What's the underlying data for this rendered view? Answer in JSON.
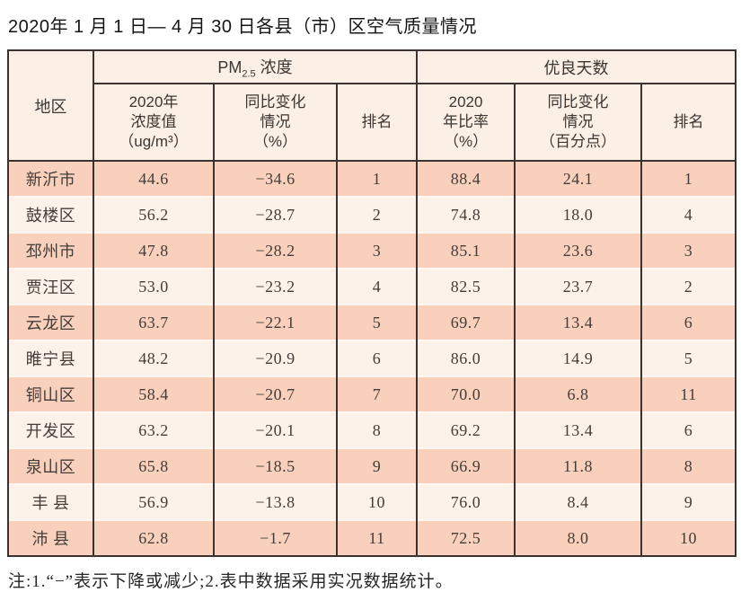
{
  "page": {
    "title": "2020年 1 月 1 日— 4 月 30 日各县（市）区空气质量情况",
    "note": "注:1.“−”表示下降或减少;2.表中数据采用实况数据统计。"
  },
  "colors": {
    "row_odd": "#f8d0bb",
    "row_even": "#fdf2ea",
    "header_bg": "#fcefe5",
    "border_dark": "#3b3330",
    "text_dark": "#433c38"
  },
  "table": {
    "corner_header": "地区",
    "groups": {
      "pm": {
        "prefix": "PM",
        "sub": "2.5",
        "suffix": " 浓度"
      },
      "days": {
        "label": "优良天数"
      }
    },
    "sub_headers": {
      "pm_value": "2020年\n浓度值\n（ug/m³）",
      "pm_change": "同比变化\n情况\n（%）",
      "pm_rank": "排名",
      "days_rate": "2020\n年比率\n（%）",
      "days_change": "同比变化\n情况\n（百分点）",
      "days_rank": "排名"
    },
    "rows": [
      {
        "region": "新沂市",
        "pm_value": "44.6",
        "pm_change": "−34.6",
        "pm_rank": "1",
        "days_rate": "88.4",
        "days_change": "24.1",
        "days_rank": "1"
      },
      {
        "region": "鼓楼区",
        "pm_value": "56.2",
        "pm_change": "−28.7",
        "pm_rank": "2",
        "days_rate": "74.8",
        "days_change": "18.0",
        "days_rank": "4"
      },
      {
        "region": "邳州市",
        "pm_value": "47.8",
        "pm_change": "−28.2",
        "pm_rank": "3",
        "days_rate": "85.1",
        "days_change": "23.6",
        "days_rank": "3"
      },
      {
        "region": "贾汪区",
        "pm_value": "53.0",
        "pm_change": "−23.2",
        "pm_rank": "4",
        "days_rate": "82.5",
        "days_change": "23.7",
        "days_rank": "2"
      },
      {
        "region": "云龙区",
        "pm_value": "63.7",
        "pm_change": "−22.1",
        "pm_rank": "5",
        "days_rate": "69.7",
        "days_change": "13.4",
        "days_rank": "6"
      },
      {
        "region": "睢宁县",
        "pm_value": "48.2",
        "pm_change": "−20.9",
        "pm_rank": "6",
        "days_rate": "86.0",
        "days_change": "14.9",
        "days_rank": "5"
      },
      {
        "region": "铜山区",
        "pm_value": "58.4",
        "pm_change": "−20.7",
        "pm_rank": "7",
        "days_rate": "70.0",
        "days_change": "6.8",
        "days_rank": "11"
      },
      {
        "region": "开发区",
        "pm_value": "63.2",
        "pm_change": "−20.1",
        "pm_rank": "8",
        "days_rate": "69.2",
        "days_change": "13.4",
        "days_rank": "6"
      },
      {
        "region": "泉山区",
        "pm_value": "65.8",
        "pm_change": "−18.5",
        "pm_rank": "9",
        "days_rate": "66.9",
        "days_change": "11.8",
        "days_rank": "8"
      },
      {
        "region": "丰 县",
        "pm_value": "56.9",
        "pm_change": "−13.8",
        "pm_rank": "10",
        "days_rate": "76.0",
        "days_change": "8.4",
        "days_rank": "9"
      },
      {
        "region": "沛 县",
        "pm_value": "62.8",
        "pm_change": "−1.7",
        "pm_rank": "11",
        "days_rate": "72.5",
        "days_change": "8.0",
        "days_rank": "10"
      }
    ]
  }
}
